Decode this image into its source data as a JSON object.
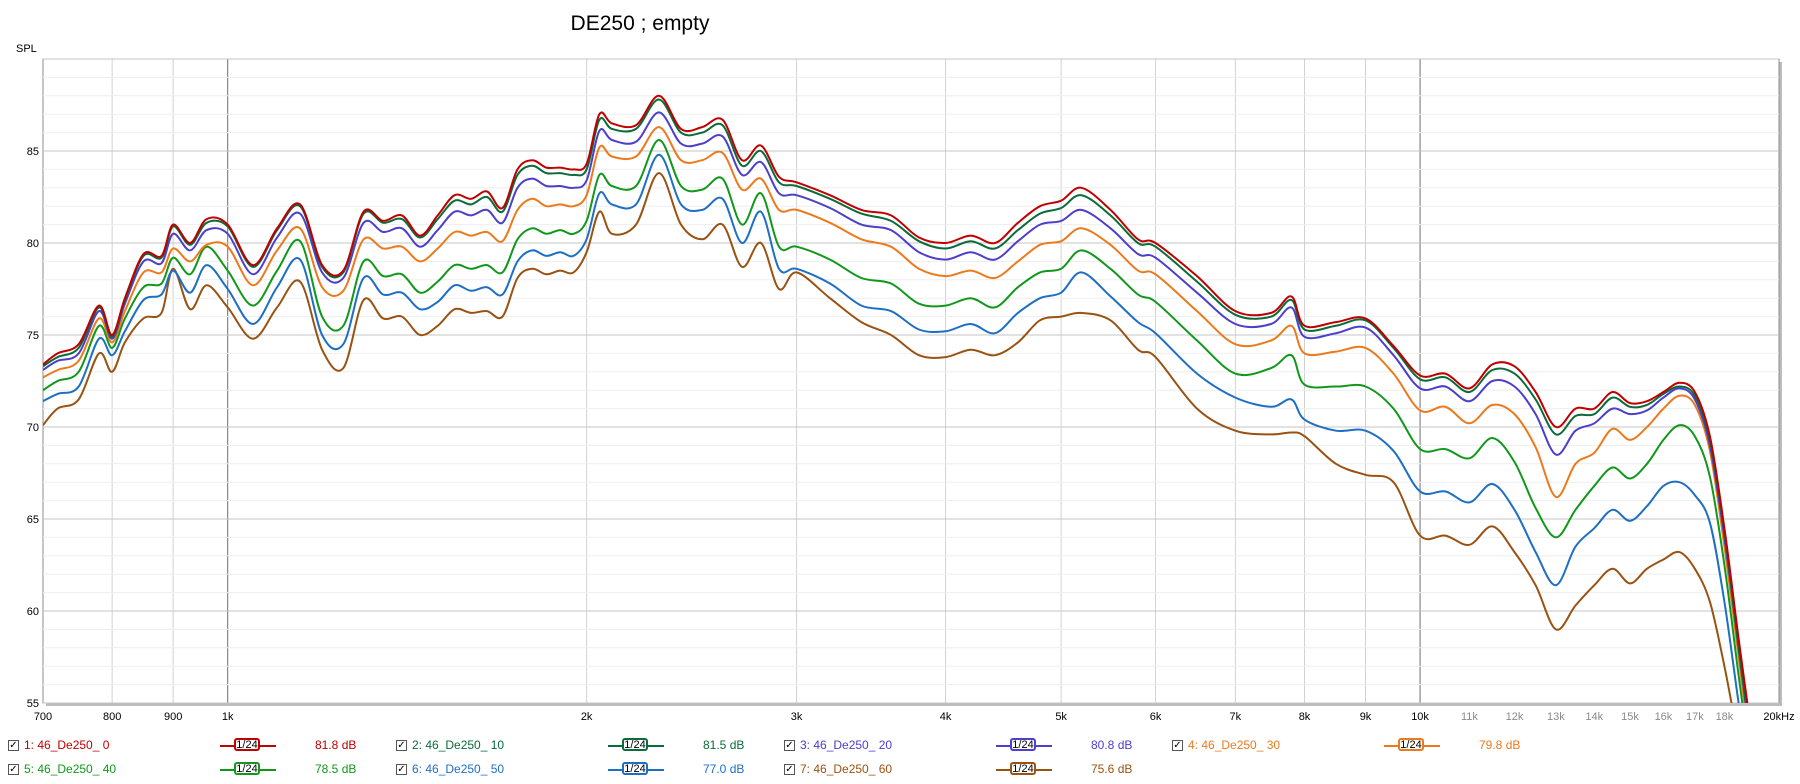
{
  "chart_data": {
    "type": "line",
    "title": "DE250 ; empty",
    "ylabel": "SPL",
    "xlabel": "",
    "x_scale": "log",
    "xlim": [
      700,
      20000
    ],
    "ylim": [
      55,
      90
    ],
    "grid": true,
    "y_ticks": [
      "55",
      "60",
      "65",
      "70",
      "75",
      "80",
      "85"
    ],
    "x_ticks": [
      {
        "value": 700,
        "label": "700",
        "major": true
      },
      {
        "value": 800,
        "label": "800",
        "major": true
      },
      {
        "value": 900,
        "label": "900",
        "major": true
      },
      {
        "value": 1000,
        "label": "1k",
        "major": true
      },
      {
        "value": 2000,
        "label": "2k",
        "major": true
      },
      {
        "value": 3000,
        "label": "3k",
        "major": true
      },
      {
        "value": 4000,
        "label": "4k",
        "major": true
      },
      {
        "value": 5000,
        "label": "5k",
        "major": true
      },
      {
        "value": 6000,
        "label": "6k",
        "major": true
      },
      {
        "value": 7000,
        "label": "7k",
        "major": true
      },
      {
        "value": 8000,
        "label": "8k",
        "major": true
      },
      {
        "value": 9000,
        "label": "9k",
        "major": true
      },
      {
        "value": 10000,
        "label": "10k",
        "major": true
      },
      {
        "value": 11000,
        "label": "11k",
        "major": false
      },
      {
        "value": 12000,
        "label": "12k",
        "major": false
      },
      {
        "value": 13000,
        "label": "13k",
        "major": false
      },
      {
        "value": 14000,
        "label": "14k",
        "major": false
      },
      {
        "value": 15000,
        "label": "15k",
        "major": false
      },
      {
        "value": 16000,
        "label": "16k",
        "major": false
      },
      {
        "value": 17000,
        "label": "17k",
        "major": false
      },
      {
        "value": 18000,
        "label": "18k",
        "major": false
      },
      {
        "value": 20000,
        "label": "20kHz",
        "major": true
      }
    ],
    "x": [
      700,
      720,
      750,
      780,
      800,
      820,
      850,
      880,
      900,
      930,
      960,
      1000,
      1050,
      1100,
      1150,
      1200,
      1250,
      1300,
      1350,
      1400,
      1450,
      1500,
      1550,
      1600,
      1650,
      1700,
      1750,
      1800,
      1850,
      1900,
      1950,
      2000,
      2050,
      2100,
      2200,
      2300,
      2400,
      2500,
      2600,
      2700,
      2800,
      2900,
      3000,
      3200,
      3400,
      3600,
      3800,
      4000,
      4200,
      4400,
      4600,
      4800,
      5000,
      5200,
      5500,
      5800,
      6000,
      6500,
      7000,
      7500,
      7800,
      8000,
      8500,
      9000,
      9500,
      10000,
      10500,
      11000,
      11500,
      12000,
      12500,
      13000,
      13500,
      14000,
      14500,
      15000,
      15500,
      16000,
      16500,
      17000,
      17500,
      18000,
      18500,
      19000
    ],
    "series": [
      {
        "name": "1: 46_De250_ 0",
        "color": "#c00000",
        "values": [
          73.4,
          74.0,
          74.5,
          76.6,
          75.0,
          77.0,
          79.4,
          79.3,
          81.0,
          80.0,
          81.3,
          81.0,
          78.8,
          80.8,
          82.1,
          78.8,
          78.5,
          81.7,
          81.2,
          81.5,
          80.4,
          81.5,
          82.6,
          82.4,
          82.8,
          81.9,
          84.0,
          84.5,
          84.1,
          84.1,
          84.0,
          84.3,
          87.0,
          86.5,
          86.4,
          88.0,
          86.2,
          86.3,
          86.7,
          84.5,
          85.3,
          83.6,
          83.3,
          82.6,
          81.8,
          81.5,
          80.3,
          80.0,
          80.4,
          80.0,
          81.1,
          82.0,
          82.3,
          83.0,
          81.8,
          80.2,
          80.0,
          78.2,
          76.3,
          76.2,
          77.1,
          75.5,
          75.7,
          75.9,
          74.4,
          72.8,
          72.9,
          72.1,
          73.4,
          73.3,
          71.9,
          70.0,
          71.0,
          71.0,
          71.9,
          71.3,
          71.4,
          71.9,
          72.4,
          71.9,
          69.5,
          64.5,
          58.5,
          53.0
        ]
      },
      {
        "name": "2: 46_De250_ 10",
        "color": "#0b6b3a",
        "values": [
          73.3,
          73.8,
          74.3,
          76.5,
          74.9,
          76.9,
          79.3,
          79.2,
          80.9,
          79.9,
          81.1,
          80.9,
          78.7,
          80.7,
          82.0,
          78.7,
          78.4,
          81.6,
          81.1,
          81.3,
          80.3,
          81.3,
          82.3,
          82.1,
          82.5,
          81.7,
          83.7,
          84.2,
          83.8,
          83.8,
          83.7,
          84.0,
          86.7,
          86.2,
          86.2,
          87.8,
          86.0,
          86.0,
          86.4,
          84.2,
          85.0,
          83.3,
          83.1,
          82.4,
          81.6,
          81.2,
          80.1,
          79.7,
          80.1,
          79.7,
          80.7,
          81.6,
          81.9,
          82.6,
          81.5,
          80.0,
          79.8,
          77.9,
          76.1,
          76.0,
          76.9,
          75.3,
          75.5,
          75.8,
          74.3,
          72.6,
          72.7,
          71.9,
          73.1,
          72.9,
          71.5,
          69.6,
          70.6,
          70.7,
          71.6,
          71.1,
          71.2,
          71.8,
          72.2,
          71.7,
          69.3,
          64.3,
          58.0,
          52.5
        ]
      },
      {
        "name": "3: 46_De250_ 20",
        "color": "#4b3fcb",
        "values": [
          73.1,
          73.6,
          74.0,
          76.3,
          74.8,
          76.7,
          79.0,
          78.9,
          80.5,
          79.6,
          80.7,
          80.5,
          78.3,
          80.3,
          81.6,
          78.4,
          78.1,
          81.1,
          80.6,
          80.8,
          79.8,
          80.7,
          81.7,
          81.5,
          81.8,
          81.1,
          83.0,
          83.5,
          83.1,
          83.1,
          83.0,
          83.4,
          86.1,
          85.6,
          85.5,
          87.1,
          85.4,
          85.4,
          85.8,
          83.7,
          84.4,
          82.7,
          82.6,
          81.9,
          81.0,
          80.7,
          79.5,
          79.1,
          79.5,
          79.1,
          80.1,
          81.0,
          81.2,
          81.8,
          80.8,
          79.4,
          79.2,
          77.3,
          75.6,
          75.6,
          76.5,
          74.9,
          75.1,
          75.4,
          73.9,
          72.1,
          72.2,
          71.4,
          72.5,
          72.2,
          70.7,
          68.5,
          69.8,
          70.2,
          71.0,
          70.7,
          70.9,
          71.6,
          72.1,
          71.5,
          69.0,
          64.0,
          58.0,
          52.0
        ]
      },
      {
        "name": "4: 46_De250_ 30",
        "color": "#ec7a1c",
        "values": [
          72.7,
          73.1,
          73.6,
          75.9,
          74.6,
          76.3,
          78.4,
          78.4,
          79.7,
          79.0,
          79.9,
          79.8,
          77.7,
          79.6,
          80.8,
          77.6,
          77.4,
          80.2,
          79.7,
          79.8,
          79.0,
          79.7,
          80.6,
          80.4,
          80.6,
          80.1,
          81.8,
          82.4,
          82.0,
          82.1,
          82.0,
          82.6,
          85.2,
          84.7,
          84.7,
          86.3,
          84.5,
          84.5,
          84.9,
          82.9,
          83.5,
          81.8,
          81.8,
          81.1,
          80.2,
          79.8,
          78.6,
          78.2,
          78.5,
          78.1,
          79.0,
          79.9,
          80.1,
          80.8,
          79.9,
          78.5,
          78.3,
          76.3,
          74.5,
          74.7,
          75.5,
          74.0,
          74.1,
          74.3,
          72.9,
          70.9,
          71.1,
          70.2,
          71.2,
          70.7,
          68.9,
          66.2,
          68.0,
          68.6,
          69.9,
          69.3,
          70.0,
          71.0,
          71.7,
          71.2,
          68.7,
          63.5,
          57.5,
          51.5
        ]
      },
      {
        "name": "5: 46_De250_ 40",
        "color": "#10981a",
        "values": [
          72.0,
          72.5,
          73.0,
          75.5,
          74.3,
          75.9,
          77.6,
          77.8,
          79.2,
          78.3,
          79.8,
          78.5,
          76.6,
          78.5,
          80.1,
          76.0,
          75.5,
          79.0,
          78.2,
          78.3,
          77.3,
          77.9,
          78.8,
          78.6,
          78.8,
          78.4,
          80.2,
          80.8,
          80.5,
          80.7,
          80.5,
          81.2,
          83.7,
          83.1,
          83.1,
          85.6,
          83.1,
          82.9,
          83.5,
          81.0,
          82.7,
          79.8,
          79.8,
          79.1,
          78.1,
          77.8,
          76.7,
          76.6,
          77.0,
          76.5,
          77.6,
          78.4,
          78.6,
          79.6,
          78.6,
          77.2,
          76.8,
          74.7,
          72.9,
          73.2,
          73.9,
          72.3,
          72.2,
          72.2,
          71.0,
          68.8,
          68.8,
          68.3,
          69.4,
          68.1,
          65.6,
          64.0,
          65.5,
          66.8,
          67.8,
          67.2,
          68.0,
          69.3,
          70.1,
          69.5,
          67.3,
          62.5,
          56.5,
          51.0
        ]
      },
      {
        "name": "6: 46_De250_ 50",
        "color": "#1e6fc4",
        "values": [
          71.4,
          71.8,
          72.2,
          74.8,
          73.9,
          75.2,
          76.9,
          77.2,
          78.5,
          77.3,
          78.8,
          77.5,
          75.6,
          77.6,
          79.1,
          75.0,
          74.5,
          78.1,
          77.2,
          77.3,
          76.4,
          76.8,
          77.7,
          77.4,
          77.6,
          77.2,
          79.0,
          79.6,
          79.3,
          79.5,
          79.3,
          80.2,
          82.7,
          82.1,
          82.1,
          84.8,
          82.1,
          81.8,
          82.4,
          80.0,
          81.7,
          78.6,
          78.6,
          77.8,
          76.6,
          76.3,
          75.3,
          75.2,
          75.6,
          75.1,
          76.2,
          77.0,
          77.3,
          78.4,
          77.1,
          75.7,
          75.1,
          72.9,
          71.6,
          71.1,
          71.5,
          70.4,
          69.8,
          69.8,
          68.7,
          66.5,
          66.5,
          65.9,
          66.9,
          65.5,
          63.2,
          61.4,
          63.5,
          64.5,
          65.5,
          64.9,
          65.7,
          66.8,
          67.0,
          66.3,
          64.8,
          60.5,
          55.0,
          50.0
        ]
      },
      {
        "name": "7: 46_De250_ 60",
        "color": "#9a5212",
        "values": [
          70.1,
          71.0,
          71.5,
          74.0,
          73.0,
          74.6,
          75.9,
          76.2,
          78.6,
          76.4,
          77.7,
          76.5,
          74.8,
          76.5,
          77.9,
          74.2,
          73.2,
          76.9,
          75.9,
          76.0,
          75.0,
          75.5,
          76.4,
          76.2,
          76.3,
          76.0,
          78.1,
          78.6,
          78.3,
          78.5,
          78.4,
          79.5,
          81.7,
          80.5,
          81.0,
          83.8,
          81.0,
          80.2,
          81.0,
          78.7,
          80.0,
          77.5,
          78.4,
          77.0,
          75.7,
          75.0,
          73.9,
          73.8,
          74.2,
          73.9,
          74.6,
          75.8,
          76.0,
          76.2,
          75.8,
          74.2,
          73.8,
          71.0,
          69.8,
          69.6,
          69.7,
          69.5,
          68.0,
          67.4,
          67.0,
          64.1,
          64.1,
          63.6,
          64.6,
          63.2,
          61.4,
          59.0,
          60.3,
          61.4,
          62.3,
          61.5,
          62.3,
          62.8,
          63.2,
          62.3,
          60.5,
          57.0,
          53.0,
          50.0
        ]
      }
    ]
  },
  "legend": {
    "smoothing_label": "1/24",
    "items": [
      {
        "label": "1: 46_De250_ 0",
        "value": "81.8 dB",
        "color": "#c00000"
      },
      {
        "label": "2: 46_De250_ 10",
        "value": "81.5 dB",
        "color": "#0b6b3a"
      },
      {
        "label": "3: 46_De250_ 20",
        "value": "80.8 dB",
        "color": "#4b3fcb"
      },
      {
        "label": "4: 46_De250_ 30",
        "value": "79.8 dB",
        "color": "#ec7a1c"
      },
      {
        "label": "5: 46_De250_ 40",
        "value": "78.5 dB",
        "color": "#10981a"
      },
      {
        "label": "6: 46_De250_ 50",
        "value": "77.0 dB",
        "color": "#1e6fc4"
      },
      {
        "label": "7: 46_De250_ 60",
        "value": "75.6 dB",
        "color": "#9a5212"
      }
    ]
  }
}
